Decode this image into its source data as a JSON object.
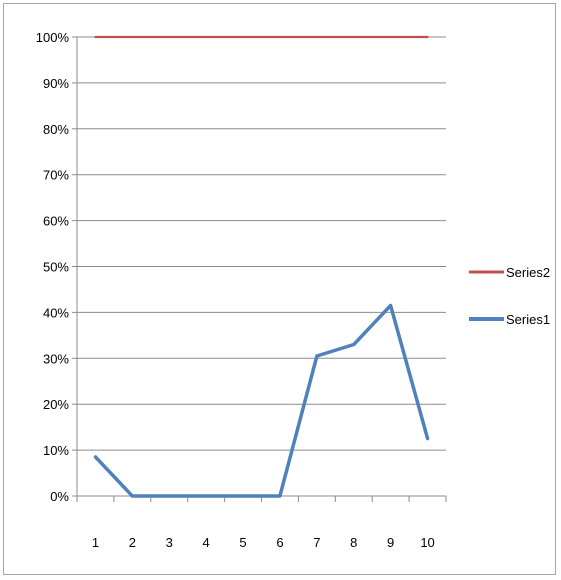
{
  "chart_data": {
    "type": "line",
    "categories": [
      "1",
      "2",
      "3",
      "4",
      "5",
      "6",
      "7",
      "8",
      "9",
      "10"
    ],
    "y_ticks": [
      "0%",
      "10%",
      "20%",
      "30%",
      "40%",
      "50%",
      "60%",
      "70%",
      "80%",
      "90%",
      "100%"
    ],
    "ylim": [
      0,
      100
    ],
    "y_format": "percent",
    "grid": "horizontal",
    "legend_position": "right",
    "series": [
      {
        "name": "Series2",
        "color": "#c0504d",
        "values": [
          100,
          100,
          100,
          100,
          100,
          100,
          100,
          100,
          100,
          100
        ]
      },
      {
        "name": "Series1",
        "color": "#4f81bd",
        "values": [
          8.5,
          0,
          0,
          0,
          0,
          0,
          30.5,
          33,
          41.5,
          12.5
        ]
      }
    ],
    "title": "",
    "xlabel": "",
    "ylabel": ""
  }
}
